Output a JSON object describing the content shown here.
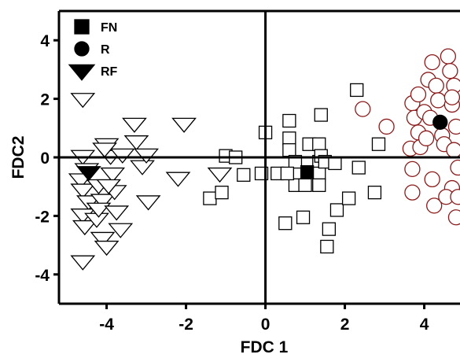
{
  "chart_data": {
    "type": "scatter",
    "title": "",
    "xlabel": "FDC 1",
    "ylabel": "FDC2",
    "xlim": [
      -5.2,
      4.9
    ],
    "ylim": [
      -5,
      5
    ],
    "xticks": [
      -4,
      -2,
      0,
      2,
      4
    ],
    "yticks": [
      -4,
      -2,
      0,
      2,
      4
    ],
    "xtick_labels": [
      "-4",
      "-2",
      "0",
      "2",
      "4"
    ],
    "ytick_labels": [
      "-4",
      "-2",
      "0",
      "2",
      "4"
    ],
    "grid": false,
    "zero_lines": true,
    "legend_position": "top-left",
    "legend": [
      {
        "label": "FN",
        "marker": "square",
        "fill": "#000000"
      },
      {
        "label": "R",
        "marker": "circle",
        "fill": "#000000"
      },
      {
        "label": "RF",
        "marker": "triangle-down",
        "fill": "#000000"
      }
    ],
    "series": [
      {
        "name": "FN",
        "marker": "square",
        "fill": "#ffffff",
        "stroke": "#000000",
        "points": [
          [
            -1.0,
            0.05
          ],
          [
            -1.4,
            -1.4
          ],
          [
            -1.1,
            -1.2
          ],
          [
            -0.1,
            -0.55
          ],
          [
            0.0,
            0.85
          ],
          [
            0.3,
            -0.55
          ],
          [
            0.6,
            1.25
          ],
          [
            0.6,
            0.65
          ],
          [
            0.6,
            0.25
          ],
          [
            0.75,
            -0.15
          ],
          [
            0.75,
            -0.95
          ],
          [
            0.55,
            -0.55
          ],
          [
            1.1,
            0.45
          ],
          [
            1.35,
            0.45
          ],
          [
            1.35,
            -0.15
          ],
          [
            1.35,
            -0.55
          ],
          [
            1.4,
            0.05
          ],
          [
            1.35,
            -0.95
          ],
          [
            1.4,
            1.45
          ],
          [
            1.5,
            -0.15
          ],
          [
            1.75,
            -0.2
          ],
          [
            1.8,
            -1.8
          ],
          [
            1.6,
            -2.45
          ],
          [
            1.55,
            -3.05
          ],
          [
            0.95,
            -2.05
          ],
          [
            0.5,
            -2.25
          ],
          [
            2.1,
            -1.4
          ],
          [
            2.35,
            -0.35
          ],
          [
            2.3,
            2.3
          ],
          [
            2.85,
            0.45
          ],
          [
            2.75,
            -1.2
          ],
          [
            1.0,
            -0.95
          ],
          [
            -0.75,
            0.0
          ],
          [
            -0.55,
            -0.6
          ]
        ]
      },
      {
        "name": "FN mean",
        "marker": "square",
        "fill": "#000000",
        "stroke": "#000000",
        "points": [
          [
            1.05,
            -0.5
          ]
        ]
      },
      {
        "name": "R",
        "marker": "circle",
        "fill": "#ffffff",
        "stroke": "#8b1a1a",
        "points": [
          [
            2.45,
            1.65
          ],
          [
            3.05,
            1.05
          ],
          [
            3.65,
            0.3
          ],
          [
            3.7,
            -0.4
          ],
          [
            3.7,
            -1.2
          ],
          [
            3.7,
            1.85
          ],
          [
            3.75,
            1.35
          ],
          [
            3.85,
            2.15
          ],
          [
            3.85,
            0.85
          ],
          [
            3.9,
            0.35
          ],
          [
            4.0,
            1.55
          ],
          [
            4.05,
            0.65
          ],
          [
            4.1,
            2.65
          ],
          [
            4.15,
            1.35
          ],
          [
            4.2,
            3.25
          ],
          [
            4.2,
            -0.75
          ],
          [
            4.25,
            -1.65
          ],
          [
            4.3,
            2.45
          ],
          [
            4.35,
            1.95
          ],
          [
            4.45,
            0.75
          ],
          [
            4.5,
            0.45
          ],
          [
            4.6,
            3.45
          ],
          [
            4.65,
            2.95
          ],
          [
            4.75,
            2.45
          ],
          [
            4.8,
            1.05
          ],
          [
            4.85,
            -0.35
          ],
          [
            4.7,
            -1.05
          ],
          [
            4.8,
            -2.05
          ],
          [
            4.55,
            -1.35
          ],
          [
            4.7,
            1.8
          ],
          [
            4.75,
            0.25
          ],
          [
            4.7,
            2.05
          ],
          [
            4.85,
            -1.35
          ]
        ]
      },
      {
        "name": "R mean",
        "marker": "circle",
        "fill": "#000000",
        "stroke": "#000000",
        "points": [
          [
            4.4,
            1.2
          ]
        ]
      },
      {
        "name": "RF",
        "marker": "triangle-down",
        "fill": "#ffffff",
        "stroke": "#000000",
        "points": [
          [
            -4.6,
            2.0
          ],
          [
            -4.6,
            0.05
          ],
          [
            -4.5,
            -0.4
          ],
          [
            -4.65,
            -0.75
          ],
          [
            -4.6,
            -1.1
          ],
          [
            -4.45,
            -1.5
          ],
          [
            -4.6,
            -1.95
          ],
          [
            -4.55,
            -2.35
          ],
          [
            -4.2,
            -0.95
          ],
          [
            -4.25,
            -2.1
          ],
          [
            -4.1,
            -1.45
          ],
          [
            -4.2,
            -1.75
          ],
          [
            -4.1,
            -2.75
          ],
          [
            -4.0,
            -3.05
          ],
          [
            -4.6,
            -3.55
          ],
          [
            -4.0,
            0.45
          ],
          [
            -3.9,
            0.05
          ],
          [
            -3.85,
            -0.55
          ],
          [
            -3.8,
            -1.15
          ],
          [
            -3.75,
            -1.85
          ],
          [
            -3.65,
            -2.45
          ],
          [
            -3.6,
            0.1
          ],
          [
            -3.3,
            1.15
          ],
          [
            -3.25,
            0.55
          ],
          [
            -3.1,
            -0.3
          ],
          [
            -3.0,
            0.1
          ],
          [
            -2.95,
            -1.5
          ],
          [
            -2.05,
            1.15
          ],
          [
            -2.2,
            -0.7
          ],
          [
            -1.15,
            -0.55
          ],
          [
            -4.05,
            0.3
          ],
          [
            -3.95,
            -0.95
          ]
        ]
      },
      {
        "name": "RF mean",
        "marker": "triangle-down",
        "fill": "#000000",
        "stroke": "#000000",
        "points": [
          [
            -4.45,
            -0.5
          ]
        ]
      }
    ]
  }
}
